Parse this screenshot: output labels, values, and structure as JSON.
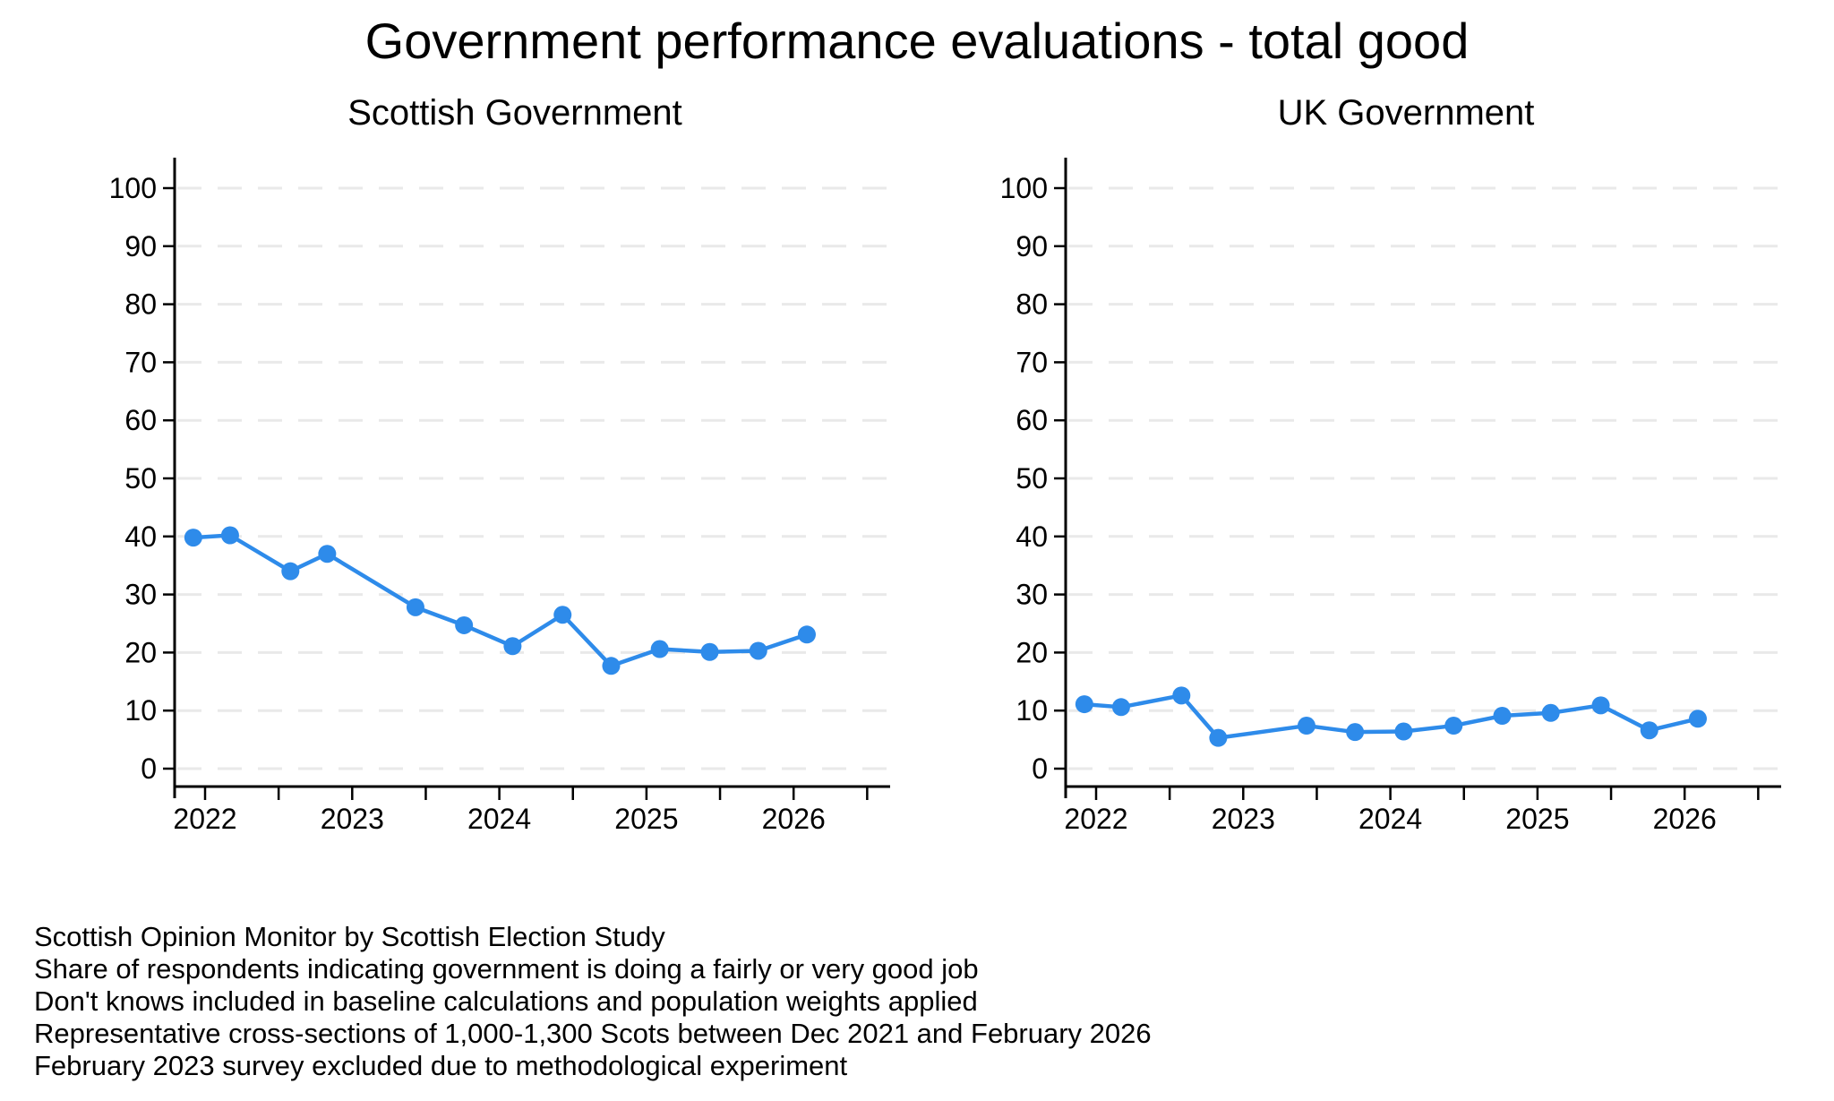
{
  "title": "Government performance evaluations - total good",
  "colors": {
    "line": "#2E8BEA",
    "marker": "#2E8BEA",
    "grid": "#E9E9E9",
    "axis": "#000000",
    "background": "#FFFFFF"
  },
  "chart_data": [
    {
      "type": "line",
      "title": "Scottish Government",
      "series_name": "Share saying government doing a fairly or very good job (%)",
      "x": [
        2021.92,
        2022.17,
        2022.58,
        2022.83,
        2023.43,
        2023.76,
        2024.09,
        2024.43,
        2024.76,
        2025.09,
        2025.43,
        2025.76,
        2026.09
      ],
      "values": [
        39.8,
        40.2,
        34.0,
        37.0,
        27.8,
        24.7,
        21.1,
        26.5,
        17.7,
        20.6,
        20.1,
        20.3,
        23.1
      ],
      "xlabel": "",
      "ylabel": "",
      "xlim": [
        2021.79,
        2026.66
      ],
      "ylim": [
        0,
        100
      ],
      "yticks": [
        0,
        10,
        20,
        30,
        40,
        50,
        60,
        70,
        80,
        90,
        100
      ],
      "xticks_major": [
        2022,
        2023,
        2024,
        2025,
        2026
      ],
      "xticks_minor": [
        2022.5,
        2023.5,
        2024.5,
        2025.5,
        2026.5
      ],
      "grid": "horizontal-dashed",
      "legend": "none",
      "marker": "circle"
    },
    {
      "type": "line",
      "title": "UK Government",
      "series_name": "Share saying government doing a fairly or very good job (%)",
      "x": [
        2021.92,
        2022.17,
        2022.58,
        2022.83,
        2023.43,
        2023.76,
        2024.09,
        2024.43,
        2024.76,
        2025.09,
        2025.43,
        2025.76,
        2026.09
      ],
      "values": [
        11.1,
        10.6,
        12.6,
        5.3,
        7.4,
        6.3,
        6.4,
        7.4,
        9.1,
        9.6,
        10.9,
        6.6,
        8.6
      ],
      "xlabel": "",
      "ylabel": "",
      "xlim": [
        2021.79,
        2026.66
      ],
      "ylim": [
        0,
        100
      ],
      "yticks": [
        0,
        10,
        20,
        30,
        40,
        50,
        60,
        70,
        80,
        90,
        100
      ],
      "xticks_major": [
        2022,
        2023,
        2024,
        2025,
        2026
      ],
      "xticks_minor": [
        2022.5,
        2023.5,
        2024.5,
        2025.5,
        2026.5
      ],
      "grid": "horizontal-dashed",
      "legend": "none",
      "marker": "circle"
    }
  ],
  "footer": {
    "notes": [
      "Scottish Opinion Monitor by Scottish Election Study",
      "Share of respondents indicating government is doing a fairly or very good job",
      "Don't knows included in baseline calculations and population weights applied",
      "Representative cross-sections of 1,000-1,300 Scots between Dec 2021 and February 2026",
      "February 2023 survey excluded due to methodological experiment"
    ]
  }
}
